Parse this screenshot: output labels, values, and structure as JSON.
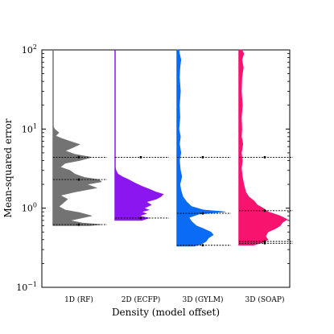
{
  "chart_data": {
    "type": "violin",
    "xlabel": "Density (model offset)",
    "ylabel": "Mean-squared error",
    "yscale": "log",
    "ylim": [
      0.1,
      100
    ],
    "y_ticks": [
      {
        "value": 0.1,
        "base": "10",
        "exp": "−1"
      },
      {
        "value": 1,
        "base": "10",
        "exp": "0"
      },
      {
        "value": 10,
        "base": "10",
        "exp": "1"
      },
      {
        "value": 100,
        "base": "10",
        "exp": "2"
      }
    ],
    "categories": [
      "1D (RF)",
      "2D (ECFP)",
      "3D (GYLM)",
      "3D (SOAP)"
    ],
    "series": [
      {
        "name": "1D (RF)",
        "color": "#737373",
        "range": [
          0.6,
          100
        ],
        "reference_lines": [
          4.4,
          2.3,
          0.62
        ],
        "profile": [
          [
            0.6,
            0.75
          ],
          [
            0.62,
            1.0
          ],
          [
            0.65,
            0.6
          ],
          [
            0.7,
            0.35
          ],
          [
            0.8,
            0.8
          ],
          [
            0.88,
            0.55
          ],
          [
            0.95,
            0.25
          ],
          [
            1.05,
            0.12
          ],
          [
            1.15,
            0.2
          ],
          [
            1.3,
            0.3
          ],
          [
            1.45,
            0.15
          ],
          [
            1.6,
            0.45
          ],
          [
            1.8,
            0.9
          ],
          [
            2.0,
            0.7
          ],
          [
            2.15,
            1.0
          ],
          [
            2.3,
            0.95
          ],
          [
            2.45,
            0.65
          ],
          [
            2.7,
            0.45
          ],
          [
            3.0,
            0.35
          ],
          [
            3.3,
            0.15
          ],
          [
            3.7,
            0.25
          ],
          [
            4.0,
            0.55
          ],
          [
            4.4,
            0.8
          ],
          [
            4.8,
            0.45
          ],
          [
            5.3,
            0.25
          ],
          [
            5.8,
            0.4
          ],
          [
            6.4,
            0.55
          ],
          [
            7.0,
            0.35
          ],
          [
            7.6,
            0.18
          ],
          [
            8.2,
            0.05
          ],
          [
            9.0,
            0.12
          ],
          [
            10.0,
            0.03
          ],
          [
            11.0,
            0.0
          ]
        ]
      },
      {
        "name": "2D (ECFP)",
        "color": "#8a16f0",
        "range": [
          0.7,
          100
        ],
        "reference_lines": [
          4.4,
          0.75
        ],
        "profile": [
          [
            0.7,
            0.55
          ],
          [
            0.75,
            0.7
          ],
          [
            0.8,
            0.5
          ],
          [
            0.85,
            0.65
          ],
          [
            0.9,
            0.55
          ],
          [
            0.95,
            0.7
          ],
          [
            1.0,
            0.6
          ],
          [
            1.1,
            0.75
          ],
          [
            1.2,
            0.65
          ],
          [
            1.3,
            0.85
          ],
          [
            1.4,
            0.95
          ],
          [
            1.5,
            1.0
          ],
          [
            1.6,
            0.85
          ],
          [
            1.75,
            0.7
          ],
          [
            1.9,
            0.55
          ],
          [
            2.1,
            0.4
          ],
          [
            2.3,
            0.28
          ],
          [
            2.5,
            0.15
          ],
          [
            2.7,
            0.06
          ],
          [
            3.0,
            0.02
          ],
          [
            3.4,
            0.0
          ]
        ]
      },
      {
        "name": "3D (GYLM)",
        "color": "#0a6bf5",
        "range": [
          0.33,
          100
        ],
        "reference_lines": [
          4.4,
          0.86,
          0.34
        ],
        "profile": [
          [
            0.33,
            0.35
          ],
          [
            0.35,
            0.5
          ],
          [
            0.38,
            0.6
          ],
          [
            0.42,
            0.65
          ],
          [
            0.46,
            0.75
          ],
          [
            0.5,
            0.7
          ],
          [
            0.55,
            0.55
          ],
          [
            0.6,
            0.4
          ],
          [
            0.68,
            0.3
          ],
          [
            0.76,
            0.25
          ],
          [
            0.84,
            0.45
          ],
          [
            0.9,
            1.0
          ],
          [
            0.95,
            0.55
          ],
          [
            1.05,
            0.3
          ],
          [
            1.2,
            0.2
          ],
          [
            1.4,
            0.12
          ],
          [
            1.7,
            0.08
          ],
          [
            2.0,
            0.06
          ],
          [
            2.5,
            0.1
          ],
          [
            3.0,
            0.07
          ],
          [
            4.0,
            0.05
          ],
          [
            5.0,
            0.08
          ],
          [
            6.5,
            0.05
          ],
          [
            8.0,
            0.07
          ],
          [
            10.0,
            0.04
          ],
          [
            14.0,
            0.06
          ],
          [
            20.0,
            0.05
          ],
          [
            30.0,
            0.07
          ],
          [
            45.0,
            0.05
          ],
          [
            60.0,
            0.06
          ],
          [
            75.0,
            0.08
          ],
          [
            90.0,
            0.05
          ],
          [
            100.0,
            0.04
          ]
        ]
      },
      {
        "name": "3D (SOAP)",
        "color": "#f7136e",
        "range": [
          0.34,
          100
        ],
        "reference_lines": [
          4.4,
          0.93,
          0.38,
          0.36
        ],
        "profile": [
          [
            0.34,
            0.3
          ],
          [
            0.37,
            0.5
          ],
          [
            0.4,
            0.6
          ],
          [
            0.44,
            0.55
          ],
          [
            0.5,
            0.6
          ],
          [
            0.55,
            0.75
          ],
          [
            0.6,
            0.85
          ],
          [
            0.66,
            0.9
          ],
          [
            0.72,
            1.0
          ],
          [
            0.8,
            0.85
          ],
          [
            0.9,
            0.6
          ],
          [
            1.0,
            0.5
          ],
          [
            1.1,
            0.38
          ],
          [
            1.25,
            0.3
          ],
          [
            1.4,
            0.2
          ],
          [
            1.6,
            0.14
          ],
          [
            2.0,
            0.1
          ],
          [
            2.5,
            0.07
          ],
          [
            3.2,
            0.05
          ],
          [
            4.0,
            0.07
          ],
          [
            5.0,
            0.05
          ],
          [
            6.5,
            0.08
          ],
          [
            8.0,
            0.05
          ],
          [
            10.0,
            0.06
          ],
          [
            14.0,
            0.05
          ],
          [
            20.0,
            0.07
          ],
          [
            30.0,
            0.05
          ],
          [
            45.0,
            0.06
          ],
          [
            60.0,
            0.09
          ],
          [
            75.0,
            0.06
          ],
          [
            90.0,
            0.1
          ],
          [
            100.0,
            0.06
          ]
        ]
      }
    ]
  }
}
